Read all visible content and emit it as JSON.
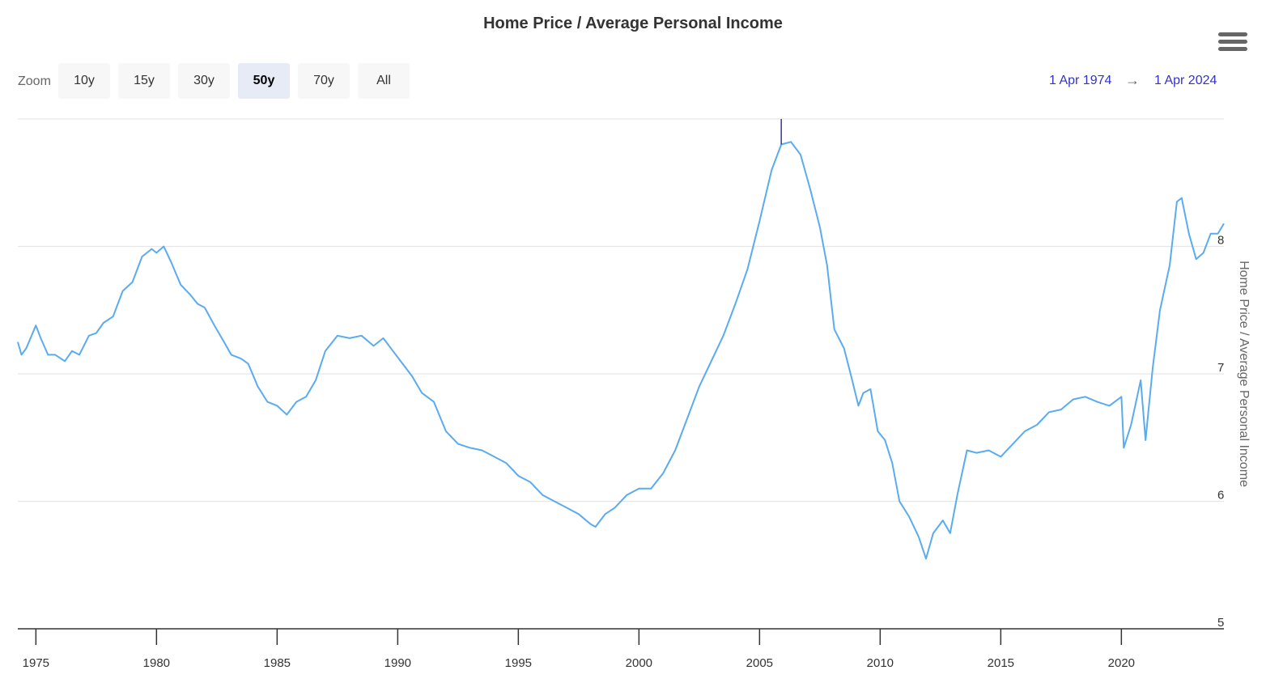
{
  "header": {
    "title": "Home Price / Average Personal Income"
  },
  "menu": {
    "icon": "hamburger-menu-icon"
  },
  "zoom": {
    "label": "Zoom",
    "buttons": [
      "10y",
      "15y",
      "30y",
      "50y",
      "70y",
      "All"
    ],
    "active": "50y"
  },
  "range": {
    "from": "1 Apr 1974",
    "arrow": "→",
    "to": "1 Apr 2024"
  },
  "colors": {
    "line": "#5aabef",
    "grid": "#e6e6e6",
    "axis": "#333333",
    "range_text": "#3333cc",
    "active_zoom": "#e6ebf5",
    "marker": "#3333aa"
  },
  "chart_data": {
    "type": "line",
    "title": "Home Price / Average Personal Income",
    "xlabel": "",
    "ylabel": "Home Price / Average Personal Income",
    "xlim": [
      1974.25,
      2024.25
    ],
    "ylim": [
      5,
      9
    ],
    "x_ticks": [
      "1975",
      "1980",
      "1985",
      "1990",
      "1995",
      "2000",
      "2005",
      "2010",
      "2015",
      "2020"
    ],
    "y_ticks": [
      "5",
      "6",
      "7",
      "8"
    ],
    "y_axis_side": "right",
    "grid": true,
    "legend": "none",
    "series": [
      {
        "x": [
          1974.25,
          1974.4,
          1974.6,
          1975.0,
          1975.2,
          1975.5,
          1975.8,
          1976.2,
          1976.5,
          1976.8,
          1977.2,
          1977.5,
          1977.8,
          1978.2,
          1978.6,
          1979.0,
          1979.4,
          1979.8,
          1980.0,
          1980.3,
          1980.6,
          1981.0,
          1981.4,
          1981.7,
          1982.0,
          1982.4,
          1982.8,
          1983.1,
          1983.5,
          1983.8,
          1984.2,
          1984.6,
          1985.0,
          1985.4,
          1985.8,
          1986.2,
          1986.6,
          1987.0,
          1987.5,
          1988.0,
          1988.5,
          1989.0,
          1989.4,
          1989.8,
          1990.2,
          1990.6,
          1991.0,
          1991.5,
          1992.0,
          1992.5,
          1993.0,
          1993.5,
          1994.0,
          1994.5,
          1995.0,
          1995.5,
          1996.0,
          1996.5,
          1997.0,
          1997.5,
          1998.0,
          1998.2,
          1998.6,
          1999.0,
          1999.5,
          2000.0,
          2000.5,
          2001.0,
          2001.5,
          2002.0,
          2002.5,
          2003.0,
          2003.5,
          2004.0,
          2004.5,
          2005.0,
          2005.5,
          2005.9,
          2006.3,
          2006.7,
          2007.1,
          2007.5,
          2007.8,
          2008.1,
          2008.5,
          2008.8,
          2009.1,
          2009.3,
          2009.6,
          2009.9,
          2010.2,
          2010.5,
          2010.8,
          2011.2,
          2011.6,
          2011.9,
          2012.2,
          2012.6,
          2012.9,
          2013.2,
          2013.6,
          2014.0,
          2014.5,
          2015.0,
          2015.5,
          2016.0,
          2016.5,
          2017.0,
          2017.5,
          2018.0,
          2018.5,
          2019.0,
          2019.5,
          2020.0,
          2020.1,
          2020.4,
          2020.8,
          2021.0,
          2021.3,
          2021.6,
          2022.0,
          2022.3,
          2022.5,
          2022.8,
          2023.1,
          2023.4,
          2023.7,
          2024.0,
          2024.25
        ],
        "y": [
          7.25,
          7.15,
          7.2,
          7.38,
          7.28,
          7.15,
          7.15,
          7.1,
          7.18,
          7.15,
          7.3,
          7.32,
          7.4,
          7.45,
          7.65,
          7.72,
          7.92,
          7.98,
          7.95,
          8.0,
          7.88,
          7.7,
          7.62,
          7.55,
          7.52,
          7.38,
          7.25,
          7.15,
          7.12,
          7.08,
          6.9,
          6.78,
          6.75,
          6.68,
          6.78,
          6.82,
          6.95,
          7.18,
          7.3,
          7.28,
          7.3,
          7.22,
          7.28,
          7.18,
          7.08,
          6.98,
          6.85,
          6.78,
          6.55,
          6.45,
          6.42,
          6.4,
          6.35,
          6.3,
          6.2,
          6.15,
          6.05,
          6.0,
          5.95,
          5.9,
          5.82,
          5.8,
          5.9,
          5.95,
          6.05,
          6.1,
          6.1,
          6.22,
          6.4,
          6.65,
          6.9,
          7.1,
          7.3,
          7.55,
          7.82,
          8.2,
          8.6,
          8.8,
          8.82,
          8.72,
          8.45,
          8.15,
          7.85,
          7.35,
          7.2,
          6.98,
          6.75,
          6.85,
          6.88,
          6.55,
          6.48,
          6.3,
          6.0,
          5.88,
          5.72,
          5.55,
          5.75,
          5.85,
          5.75,
          6.05,
          6.4,
          6.38,
          6.4,
          6.35,
          6.45,
          6.55,
          6.6,
          6.7,
          6.72,
          6.8,
          6.82,
          6.78,
          6.75,
          6.82,
          6.42,
          6.6,
          6.95,
          6.48,
          7.05,
          7.5,
          7.85,
          8.35,
          8.38,
          8.1,
          7.9,
          7.95,
          8.1,
          8.1,
          8.18
        ]
      }
    ],
    "annotations": [
      {
        "type": "peak-marker",
        "x": 2005.9
      }
    ]
  }
}
